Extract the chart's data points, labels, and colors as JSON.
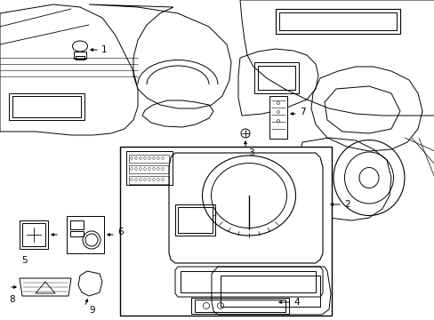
{
  "background_color": "#ffffff",
  "line_color": "#000000",
  "figsize": [
    4.89,
    3.6
  ],
  "dpi": 100,
  "lw": 0.7
}
